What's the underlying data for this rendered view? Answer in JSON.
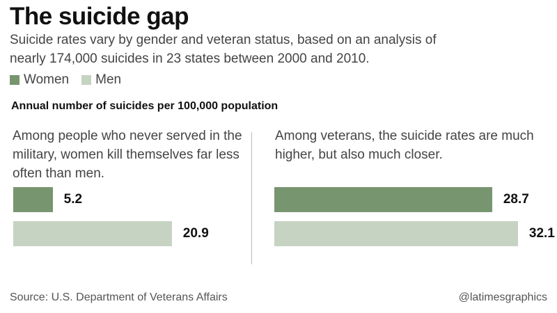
{
  "title": "The suicide gap",
  "subtitle": "Suicide rates vary by gender and veteran status, based on an analysis of nearly 174,000 suicides in 23 states between 2000 and 2010.",
  "legend": [
    {
      "label": "Women",
      "color": "#77966f"
    },
    {
      "label": "Men",
      "color": "#c6d3c2"
    }
  ],
  "measure_label": "Annual number of suicides per 100,000 population",
  "panels": [
    {
      "note": "Among people who never served in the military, women kill themselves far less often than men."
    },
    {
      "note": "Among veterans, the suicide rates are much higher, but also much closer."
    }
  ],
  "chart_data": [
    {
      "type": "bar",
      "orientation": "horizontal",
      "categories": [
        "Women",
        "Men"
      ],
      "values": [
        5.2,
        20.9
      ],
      "data_labels": [
        "5.2",
        "20.9"
      ],
      "colors": [
        "#77966f",
        "#c6d3c2"
      ]
    },
    {
      "type": "bar",
      "orientation": "horizontal",
      "categories": [
        "Women",
        "Men"
      ],
      "values": [
        28.7,
        32.1
      ],
      "data_labels": [
        "28.7",
        "32.1"
      ],
      "colors": [
        "#77966f",
        "#c6d3c2"
      ]
    }
  ],
  "footer": {
    "source": "Source: U.S. Department of Veterans Affairs",
    "credit": "@latimesgraphics"
  }
}
